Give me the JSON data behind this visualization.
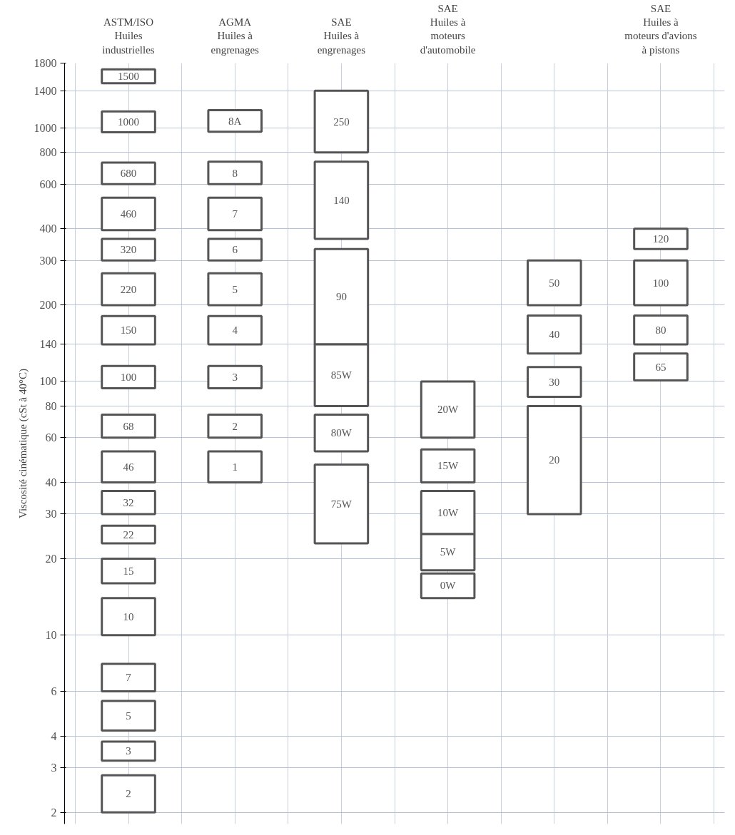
{
  "chart_data": {
    "type": "bar",
    "categories": [
      "ASTM/ISO\nHuiles\nindustrielles",
      "AGMA\nHuiles à\nengrenages",
      "SAE\nHuiles à\nengrenages",
      "SAE\nHuiles à\nmoteurs\nd'automobile",
      null,
      "SAE\nHuiles à\nmoteurs d'avions\nà pistons"
    ],
    "ylabel": "Viscosité cinématique (cSt à 40°C)",
    "color": "#555555",
    "log": true,
    "ylim": [
      1.8,
      1800
    ],
    "yticks": [
      2,
      3,
      4,
      6,
      10,
      20,
      30,
      40,
      60,
      80,
      100,
      140,
      200,
      300,
      400,
      600,
      800,
      1000,
      1400,
      1800
    ],
    "grid": true,
    "legend": false,
    "series": [
      {
        "name": "1500",
        "base": [
          1500,
          null,
          null,
          null,
          null,
          null
        ],
        "values": [
          200,
          null,
          null,
          null,
          null,
          null
        ]
      },
      {
        "name": "1000",
        "base": [
          960,
          null,
          null,
          null,
          null,
          null
        ],
        "values": [
          200,
          null,
          null,
          null,
          null,
          null
        ]
      },
      {
        "name": "680",
        "base": [
          600,
          null,
          null,
          null,
          null,
          null
        ],
        "values": [
          130,
          null,
          null,
          null,
          null,
          null
        ]
      },
      {
        "name": "460",
        "base": [
          395,
          null,
          null,
          null,
          null,
          null
        ],
        "values": [
          135,
          null,
          null,
          null,
          null,
          null
        ]
      },
      {
        "name": "320",
        "base": [
          300,
          null,
          null,
          null,
          null,
          null
        ],
        "values": [
          65,
          null,
          null,
          null,
          null,
          null
        ]
      },
      {
        "name": "220",
        "base": [
          200,
          null,
          null,
          null,
          null,
          null
        ],
        "values": [
          67,
          null,
          null,
          null,
          null,
          null
        ]
      },
      {
        "name": "150",
        "base": [
          140,
          null,
          null,
          null,
          null,
          null
        ],
        "values": [
          41,
          null,
          null,
          null,
          null,
          null
        ]
      },
      {
        "name": "100",
        "base": [
          94,
          null,
          null,
          null,
          null,
          null
        ],
        "values": [
          21,
          null,
          null,
          null,
          null,
          null
        ]
      },
      {
        "name": "68",
        "base": [
          60,
          null,
          null,
          null,
          null,
          null
        ],
        "values": [
          14,
          null,
          null,
          null,
          null,
          null
        ]
      },
      {
        "name": "46",
        "base": [
          40,
          null,
          null,
          null,
          null,
          null
        ],
        "values": [
          13,
          null,
          null,
          null,
          null,
          null
        ]
      },
      {
        "name": "32",
        "base": [
          30,
          null,
          null,
          null,
          null,
          null
        ],
        "values": [
          7,
          null,
          null,
          null,
          null,
          null
        ]
      },
      {
        "name": "22",
        "base": [
          23,
          null,
          null,
          null,
          null,
          null
        ],
        "values": [
          4,
          null,
          null,
          null,
          null,
          null
        ]
      },
      {
        "name": "15",
        "base": [
          16,
          null,
          null,
          null,
          null,
          null
        ],
        "values": [
          4,
          null,
          null,
          null,
          null,
          null
        ]
      },
      {
        "name": "10",
        "base": [
          10,
          null,
          null,
          null,
          null,
          null
        ],
        "values": [
          4,
          null,
          null,
          null,
          null,
          null
        ]
      },
      {
        "name": "7",
        "base": [
          6,
          null,
          null,
          null,
          null,
          null
        ],
        "values": [
          1.7,
          null,
          null,
          null,
          null,
          null
        ]
      },
      {
        "name": "5",
        "base": [
          4.2,
          null,
          null,
          null,
          null,
          null
        ],
        "values": [
          1.3,
          null,
          null,
          null,
          null,
          null
        ]
      },
      {
        "name": "3",
        "base": [
          3.2,
          null,
          null,
          null,
          null,
          null
        ],
        "values": [
          0.6,
          null,
          null,
          null,
          null,
          null
        ]
      },
      {
        "name": "2",
        "base": [
          2,
          null,
          null,
          null,
          null,
          null
        ],
        "values": [
          0.8,
          null,
          null,
          null,
          null,
          null
        ]
      },
      {
        "name": "8A",
        "base": [
          null,
          965,
          null,
          null,
          null,
          null
        ],
        "values": [
          null,
          210,
          null,
          null,
          null,
          null
        ]
      },
      {
        "name": "8",
        "base": [
          null,
          600,
          null,
          null,
          null,
          null
        ],
        "values": [
          null,
          135,
          null,
          null,
          null,
          null
        ]
      },
      {
        "name": "7",
        "base": [
          null,
          395,
          null,
          null,
          null,
          null
        ],
        "values": [
          null,
          135,
          null,
          null,
          null,
          null
        ]
      },
      {
        "name": "6",
        "base": [
          null,
          300,
          null,
          null,
          null,
          null
        ],
        "values": [
          null,
          65,
          null,
          null,
          null,
          null
        ]
      },
      {
        "name": "5",
        "base": [
          null,
          200,
          null,
          null,
          null,
          null
        ],
        "values": [
          null,
          67,
          null,
          null,
          null,
          null
        ]
      },
      {
        "name": "4",
        "base": [
          null,
          140,
          null,
          null,
          null,
          null
        ],
        "values": [
          null,
          41,
          null,
          null,
          null,
          null
        ]
      },
      {
        "name": "3",
        "base": [
          null,
          94,
          null,
          null,
          null,
          null
        ],
        "values": [
          null,
          21,
          null,
          null,
          null,
          null
        ]
      },
      {
        "name": "2",
        "base": [
          null,
          60,
          null,
          null,
          null,
          null
        ],
        "values": [
          null,
          14,
          null,
          null,
          null,
          null
        ]
      },
      {
        "name": "1",
        "base": [
          null,
          40,
          null,
          null,
          null,
          null
        ],
        "values": [
          null,
          13,
          null,
          null,
          null,
          null
        ]
      },
      {
        "name": "250",
        "base": [
          null,
          null,
          800,
          null,
          null,
          null
        ],
        "values": [
          null,
          null,
          600,
          null,
          null,
          null
        ]
      },
      {
        "name": "140",
        "base": [
          null,
          null,
          365,
          null,
          null,
          null
        ],
        "values": [
          null,
          null,
          370,
          null,
          null,
          null
        ]
      },
      {
        "name": "90",
        "base": [
          null,
          null,
          140,
          null,
          null,
          null
        ],
        "values": [
          null,
          null,
          193,
          null,
          null,
          null
        ]
      },
      {
        "name": "85W",
        "base": [
          null,
          null,
          80,
          null,
          null,
          null
        ],
        "values": [
          null,
          null,
          60,
          null,
          null,
          null
        ]
      },
      {
        "name": "80W",
        "base": [
          null,
          null,
          53,
          null,
          null,
          null
        ],
        "values": [
          null,
          null,
          21,
          null,
          null,
          null
        ]
      },
      {
        "name": "75W",
        "base": [
          null,
          null,
          23,
          null,
          null,
          null
        ],
        "values": [
          null,
          null,
          24,
          null,
          null,
          null
        ]
      },
      {
        "name": "20W",
        "base": [
          null,
          null,
          null,
          60,
          null,
          null
        ],
        "values": [
          null,
          null,
          null,
          40,
          null,
          null
        ]
      },
      {
        "name": "15W",
        "base": [
          null,
          null,
          null,
          40,
          null,
          null
        ],
        "values": [
          null,
          null,
          null,
          14,
          null,
          null
        ]
      },
      {
        "name": "10W",
        "base": [
          null,
          null,
          null,
          25,
          null,
          null
        ],
        "values": [
          null,
          null,
          null,
          12,
          null,
          null
        ]
      },
      {
        "name": "5W",
        "base": [
          null,
          null,
          null,
          18,
          null,
          null
        ],
        "values": [
          null,
          null,
          null,
          7,
          null,
          null
        ]
      },
      {
        "name": "0W",
        "base": [
          null,
          null,
          null,
          14,
          null,
          null
        ],
        "values": [
          null,
          null,
          null,
          3.5,
          null,
          null
        ]
      },
      {
        "name": "50",
        "base": [
          null,
          null,
          null,
          null,
          200,
          null
        ],
        "values": [
          null,
          null,
          null,
          null,
          100,
          null
        ]
      },
      {
        "name": "40",
        "base": [
          null,
          null,
          null,
          null,
          129,
          null
        ],
        "values": [
          null,
          null,
          null,
          null,
          53,
          null
        ]
      },
      {
        "name": "30",
        "base": [
          null,
          null,
          null,
          null,
          87,
          null
        ],
        "values": [
          null,
          null,
          null,
          null,
          27,
          null
        ]
      },
      {
        "name": "20",
        "base": [
          null,
          null,
          null,
          null,
          30,
          null
        ],
        "values": [
          null,
          null,
          null,
          null,
          50,
          null
        ]
      },
      {
        "name": "120",
        "base": [
          null,
          null,
          null,
          null,
          null,
          333
        ],
        "values": [
          null,
          null,
          null,
          null,
          null,
          67
        ]
      },
      {
        "name": "100",
        "base": [
          null,
          null,
          null,
          null,
          null,
          200
        ],
        "values": [
          null,
          null,
          null,
          null,
          null,
          100
        ]
      },
      {
        "name": "80",
        "base": [
          null,
          null,
          null,
          null,
          null,
          140
        ],
        "values": [
          null,
          null,
          null,
          null,
          null,
          42
        ]
      },
      {
        "name": "65",
        "base": [
          null,
          null,
          null,
          null,
          null,
          101
        ],
        "values": [
          null,
          null,
          null,
          null,
          null,
          28
        ]
      }
    ]
  }
}
